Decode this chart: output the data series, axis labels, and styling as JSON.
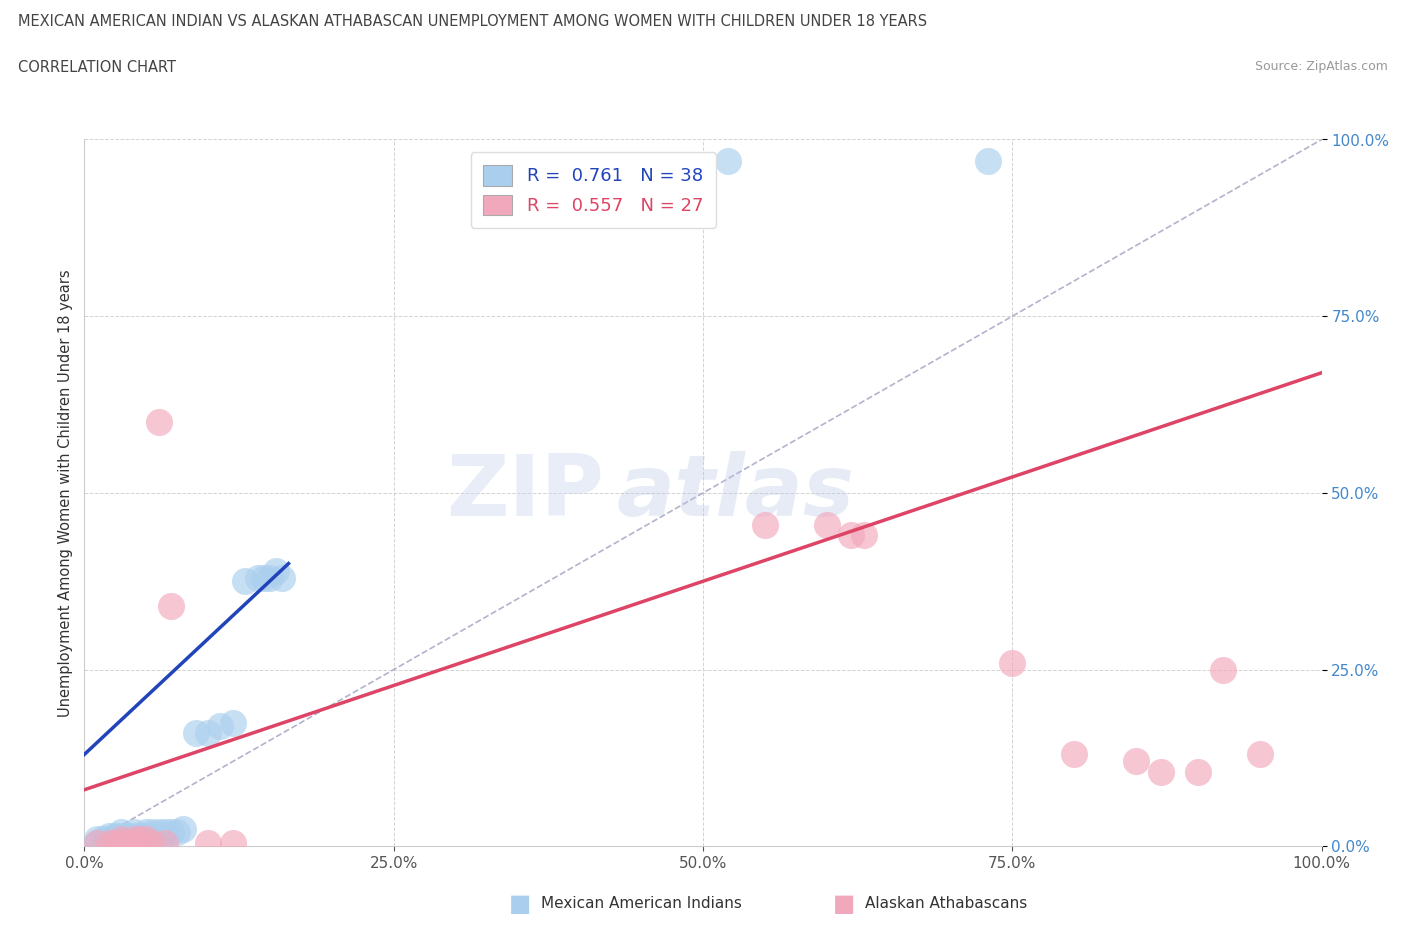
{
  "title": "MEXICAN AMERICAN INDIAN VS ALASKAN ATHABASCAN UNEMPLOYMENT AMONG WOMEN WITH CHILDREN UNDER 18 YEARS",
  "subtitle": "CORRELATION CHART",
  "source": "Source: ZipAtlas.com",
  "ylabel": "Unemployment Among Women with Children Under 18 years",
  "xlim": [
    0.0,
    1.0
  ],
  "ylim": [
    0.0,
    1.0
  ],
  "xticks": [
    0.0,
    0.25,
    0.5,
    0.75,
    1.0
  ],
  "yticks": [
    0.0,
    0.25,
    0.5,
    0.75,
    1.0
  ],
  "xticklabels": [
    "0.0%",
    "25.0%",
    "50.0%",
    "75.0%",
    "100.0%"
  ],
  "yticklabels": [
    "0.0%",
    "25.0%",
    "50.0%",
    "75.0%",
    "100.0%"
  ],
  "watermark_zip": "ZIP",
  "watermark_atlas": "atlas",
  "blue_label": "Mexican American Indians",
  "pink_label": "Alaskan Athabascans",
  "blue_R": "0.761",
  "blue_N": "38",
  "pink_R": "0.557",
  "pink_N": "27",
  "blue_color": "#aacfee",
  "pink_color": "#f2a8bc",
  "blue_line_color": "#2244bb",
  "pink_line_color": "#dd4466",
  "diag_line_color": "#9999bb",
  "blue_scatter": [
    [
      0.01,
      0.005
    ],
    [
      0.01,
      0.01
    ],
    [
      0.015,
      0.01
    ],
    [
      0.02,
      0.005
    ],
    [
      0.02,
      0.01
    ],
    [
      0.02,
      0.015
    ],
    [
      0.025,
      0.01
    ],
    [
      0.025,
      0.015
    ],
    [
      0.03,
      0.01
    ],
    [
      0.03,
      0.015
    ],
    [
      0.03,
      0.02
    ],
    [
      0.035,
      0.015
    ],
    [
      0.04,
      0.01
    ],
    [
      0.04,
      0.015
    ],
    [
      0.04,
      0.02
    ],
    [
      0.045,
      0.015
    ],
    [
      0.05,
      0.015
    ],
    [
      0.05,
      0.02
    ],
    [
      0.055,
      0.02
    ],
    [
      0.06,
      0.02
    ],
    [
      0.065,
      0.02
    ],
    [
      0.07,
      0.02
    ],
    [
      0.075,
      0.02
    ],
    [
      0.08,
      0.025
    ],
    [
      0.09,
      0.16
    ],
    [
      0.1,
      0.16
    ],
    [
      0.11,
      0.17
    ],
    [
      0.12,
      0.175
    ],
    [
      0.13,
      0.375
    ],
    [
      0.14,
      0.38
    ],
    [
      0.145,
      0.38
    ],
    [
      0.15,
      0.38
    ],
    [
      0.155,
      0.39
    ],
    [
      0.16,
      0.38
    ],
    [
      0.52,
      0.97
    ],
    [
      0.73,
      0.97
    ],
    [
      0.05,
      0.005
    ],
    [
      0.06,
      0.005
    ]
  ],
  "pink_scatter": [
    [
      0.01,
      0.005
    ],
    [
      0.02,
      0.005
    ],
    [
      0.025,
      0.005
    ],
    [
      0.03,
      0.005
    ],
    [
      0.03,
      0.01
    ],
    [
      0.035,
      0.005
    ],
    [
      0.04,
      0.005
    ],
    [
      0.04,
      0.01
    ],
    [
      0.045,
      0.01
    ],
    [
      0.05,
      0.01
    ],
    [
      0.055,
      0.005
    ],
    [
      0.06,
      0.6
    ],
    [
      0.065,
      0.005
    ],
    [
      0.07,
      0.34
    ],
    [
      0.55,
      0.455
    ],
    [
      0.6,
      0.455
    ],
    [
      0.62,
      0.44
    ],
    [
      0.63,
      0.44
    ],
    [
      0.75,
      0.26
    ],
    [
      0.8,
      0.13
    ],
    [
      0.85,
      0.12
    ],
    [
      0.87,
      0.105
    ],
    [
      0.9,
      0.105
    ],
    [
      0.92,
      0.25
    ],
    [
      0.95,
      0.13
    ],
    [
      0.1,
      0.005
    ],
    [
      0.12,
      0.005
    ]
  ],
  "blue_line": [
    [
      0.0,
      0.13
    ],
    [
      0.165,
      0.4
    ]
  ],
  "pink_line": [
    [
      0.0,
      0.08
    ],
    [
      1.0,
      0.67
    ]
  ]
}
